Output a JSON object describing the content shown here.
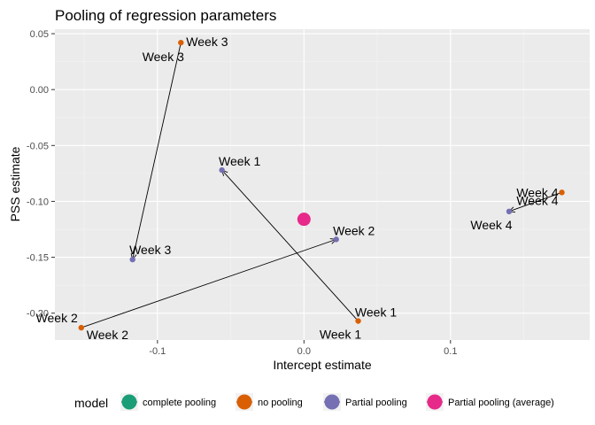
{
  "chart_data": {
    "type": "scatter",
    "title": "Pooling of regression parameters",
    "xlabel": "Intercept estimate",
    "ylabel": "PSS estimate",
    "xlim": [
      -0.17,
      0.195
    ],
    "ylim": [
      -0.224,
      0.054
    ],
    "x_ticks": [
      -0.1,
      0.0,
      0.1
    ],
    "x_tick_labels": [
      "-0.1",
      "0.0",
      "0.1"
    ],
    "y_ticks": [
      0.05,
      0.0,
      -0.05,
      -0.1,
      -0.15,
      -0.2
    ],
    "y_tick_labels": [
      "0.05",
      "0.00",
      "-0.05",
      "-0.10",
      "-0.15",
      "-0.20"
    ],
    "grid": true,
    "legend": {
      "title": "model",
      "position": "bottom",
      "entries": [
        {
          "label": "complete pooling",
          "color": "#1b9e77"
        },
        {
          "label": "no pooling",
          "color": "#d95f02"
        },
        {
          "label": "Partial pooling",
          "color": "#7570b3"
        },
        {
          "label": "Partial pooling (average)",
          "color": "#e7298a"
        }
      ]
    },
    "series": [
      {
        "name": "no pooling",
        "color": "#d95f02",
        "points": [
          {
            "label": "Week 1",
            "x": 0.037,
            "y": -0.207
          },
          {
            "label": "Week 2",
            "x": -0.152,
            "y": -0.213
          },
          {
            "label": "Week 3",
            "x": -0.084,
            "y": 0.042
          },
          {
            "label": "Week 4",
            "x": 0.176,
            "y": -0.092
          }
        ]
      },
      {
        "name": "Partial pooling",
        "color": "#7570b3",
        "points": [
          {
            "label": "Week 1",
            "x": -0.056,
            "y": -0.072
          },
          {
            "label": "Week 2",
            "x": 0.022,
            "y": -0.134
          },
          {
            "label": "Week 3",
            "x": -0.117,
            "y": -0.152
          },
          {
            "label": "Week 4",
            "x": 0.14,
            "y": -0.109
          }
        ]
      },
      {
        "name": "Partial pooling (average)",
        "color": "#e7298a",
        "points": [
          {
            "label": "",
            "x": 0.0,
            "y": -0.116
          }
        ]
      }
    ],
    "arrows": [
      {
        "from": [
          0.037,
          -0.207
        ],
        "to": [
          -0.056,
          -0.072
        ]
      },
      {
        "from": [
          -0.152,
          -0.213
        ],
        "to": [
          0.022,
          -0.134
        ]
      },
      {
        "from": [
          -0.084,
          0.042
        ],
        "to": [
          -0.117,
          -0.152
        ]
      },
      {
        "from": [
          0.176,
          -0.092
        ],
        "to": [
          0.14,
          -0.109
        ]
      }
    ]
  }
}
